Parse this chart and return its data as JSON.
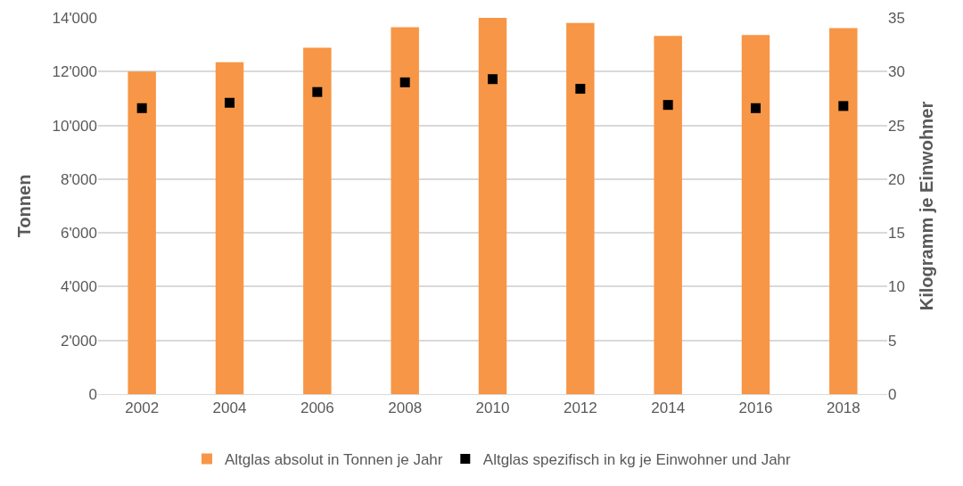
{
  "chart_data": {
    "type": "bar",
    "ylabel": "Tonnen",
    "y2label": "Kilogramm je Einwohner",
    "categories": [
      "2002",
      "2004",
      "2006",
      "2008",
      "2010",
      "2012",
      "2014",
      "2016",
      "2018"
    ],
    "series": [
      {
        "name": "Altglas absolut in Tonnen je Jahr",
        "color": "#f79646",
        "values": [
          12000,
          12350,
          12890,
          13650,
          14000,
          13810,
          13330,
          13360,
          13620
        ]
      },
      {
        "name": "Altglas spezifisch in kg je Einwohner und Jahr",
        "color": "#000000",
        "type": "scatter",
        "axis": "y2",
        "values": [
          26.6,
          27.1,
          28.1,
          29.0,
          29.3,
          28.4,
          26.9,
          26.6,
          26.8
        ]
      }
    ],
    "ylim": [
      0,
      14000
    ],
    "yticks": [
      0,
      {
        "value": 2000,
        "label": "2'000"
      },
      {
        "value": 4000,
        "label": "4'000"
      },
      {
        "value": 6000,
        "label": "6'000"
      },
      {
        "value": 8000,
        "label": "8'000"
      },
      {
        "value": 10000,
        "label": "10'000"
      },
      {
        "value": 12000,
        "label": "12'000"
      },
      {
        "value": 14000,
        "label": "14'000"
      }
    ],
    "y2lim": [
      0,
      35
    ],
    "y2ticks": [
      0,
      5,
      10,
      15,
      20,
      25,
      30,
      35
    ],
    "grid": "y",
    "legend": "bottom"
  }
}
